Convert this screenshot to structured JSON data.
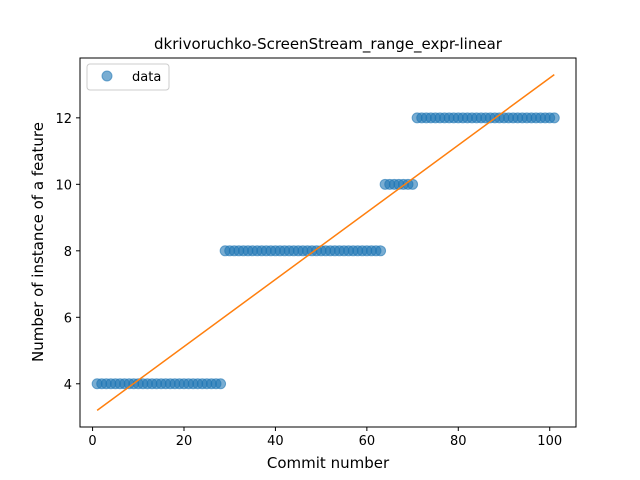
{
  "chart_data": {
    "type": "scatter",
    "title": "dkrivoruchko-ScreenStream_range_expr-linear",
    "xlabel": "Commit number",
    "ylabel": "Number of instance of a feature",
    "xlim": [
      -2.75,
      105.75
    ],
    "ylim": [
      2.7,
      13.8
    ],
    "xticks": [
      0,
      20,
      40,
      60,
      80,
      100
    ],
    "yticks": [
      4,
      6,
      8,
      10,
      12
    ],
    "grid": false,
    "legend": {
      "placement": "top-left",
      "entries": [
        "data"
      ]
    },
    "series": [
      {
        "name": "data",
        "kind": "scatter",
        "color": "#1f77b4",
        "segments": [
          {
            "x_start": 1,
            "x_end": 28,
            "y": 4
          },
          {
            "x_start": 29,
            "x_end": 63,
            "y": 8
          },
          {
            "x_start": 64,
            "x_end": 70,
            "y": 10
          },
          {
            "x_start": 71,
            "x_end": 101,
            "y": 12
          }
        ]
      },
      {
        "kind": "line",
        "color": "#ff7f0e",
        "x": [
          1,
          101
        ],
        "y": [
          3.2,
          13.3
        ]
      }
    ]
  }
}
